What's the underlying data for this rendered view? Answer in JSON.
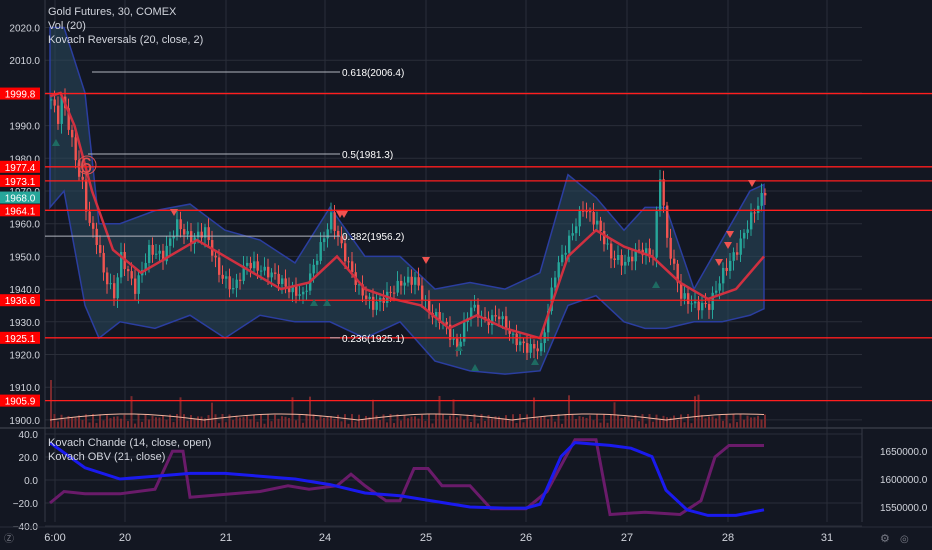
{
  "legend": {
    "symbol": "Gold Futures, 30, COMEX",
    "vol": "Vol (20)",
    "indicator": "Kovach Reversals (20, close, 2)",
    "lower1": "Kovach Chande (14, close, open)",
    "lower2": "Kovach OBV (21, close)"
  },
  "colors": {
    "bg": "#131722",
    "grid": "#2a2e39",
    "hline": "#ff1e1e",
    "fib": "#b2b5be",
    "band_fill": "#2a4a5e",
    "band_edge": "#2b3ea0",
    "ma": "#d03040",
    "up": "#26a69a",
    "down": "#ef5350",
    "vol": "#7a2a2e",
    "vol_ma": "#f4b6a0",
    "chande": "#6a1b6a",
    "obv": "#1a1aee",
    "label_red": "#ff0000",
    "label_teal": "#26a69a"
  },
  "chart_data": [
    {
      "type": "candlestick",
      "title": "Gold Futures, 30, COMEX",
      "ylim": [
        1900,
        2023
      ],
      "y_ticks": [
        1900.0,
        1910.0,
        1920.0,
        1930.0,
        1940.0,
        1950.0,
        1960.0,
        1970.0,
        1980.0,
        1990.0,
        2000.0,
        2010.0,
        2020.0
      ],
      "x_ticks": [
        "6:00",
        "20",
        "21",
        "24",
        "25",
        "26",
        "27",
        "28",
        "31"
      ],
      "close_path": [
        [
          0,
          1998
        ],
        [
          2,
          1992
        ],
        [
          3,
          1998
        ],
        [
          4,
          1995
        ],
        [
          5,
          1990
        ],
        [
          6,
          1985
        ],
        [
          7,
          1980
        ],
        [
          8,
          1975
        ],
        [
          9,
          1972
        ],
        [
          10,
          1965
        ],
        [
          11,
          1960
        ],
        [
          13,
          1955
        ],
        [
          15,
          1945
        ],
        [
          18,
          1938
        ],
        [
          20,
          1950
        ],
        [
          24,
          1940
        ],
        [
          28,
          1952
        ],
        [
          32,
          1950
        ],
        [
          36,
          1960
        ],
        [
          40,
          1955
        ],
        [
          44,
          1958
        ],
        [
          48,
          1945
        ],
        [
          52,
          1940
        ],
        [
          56,
          1948
        ],
        [
          60,
          1946
        ],
        [
          64,
          1944
        ],
        [
          68,
          1940
        ],
        [
          72,
          1938
        ],
        [
          76,
          1950
        ],
        [
          80,
          1962
        ],
        [
          84,
          1950
        ],
        [
          88,
          1940
        ],
        [
          92,
          1935
        ],
        [
          96,
          1938
        ],
        [
          100,
          1942
        ],
        [
          104,
          1943
        ],
        [
          108,
          1933
        ],
        [
          112,
          1930
        ],
        [
          116,
          1922
        ],
        [
          120,
          1935
        ],
        [
          124,
          1930
        ],
        [
          128,
          1932
        ],
        [
          132,
          1925
        ],
        [
          136,
          1922
        ],
        [
          140,
          1922
        ],
        [
          144,
          1945
        ],
        [
          148,
          1955
        ],
        [
          152,
          1965
        ],
        [
          156,
          1960
        ],
        [
          160,
          1950
        ],
        [
          164,
          1948
        ],
        [
          168,
          1952
        ],
        [
          172,
          1950
        ],
        [
          174,
          1975
        ],
        [
          176,
          1955
        ],
        [
          180,
          1938
        ],
        [
          184,
          1935
        ],
        [
          188,
          1935
        ],
        [
          192,
          1945
        ],
        [
          196,
          1952
        ],
        [
          200,
          1962
        ],
        [
          204,
          1970
        ]
      ],
      "overbought_band": {
        "upper": [
          [
            0,
            2020
          ],
          [
            4,
            2020
          ],
          [
            10,
            2000
          ],
          [
            14,
            1960
          ],
          [
            20,
            1960
          ],
          [
            30,
            1964
          ],
          [
            40,
            1966
          ],
          [
            50,
            1958
          ],
          [
            60,
            1955
          ],
          [
            70,
            1948
          ],
          [
            80,
            1965
          ],
          [
            90,
            1950
          ],
          [
            100,
            1950
          ],
          [
            110,
            1940
          ],
          [
            120,
            1942
          ],
          [
            130,
            1940
          ],
          [
            140,
            1945
          ],
          [
            148,
            1975
          ],
          [
            156,
            1968
          ],
          [
            164,
            1958
          ],
          [
            170,
            1965
          ],
          [
            176,
            1965
          ],
          [
            184,
            1940
          ],
          [
            192,
            1955
          ],
          [
            200,
            1970
          ],
          [
            204,
            1972
          ]
        ],
        "lower": [
          [
            0,
            1965
          ],
          [
            4,
            1970
          ],
          [
            10,
            1935
          ],
          [
            14,
            1925
          ],
          [
            20,
            1930
          ],
          [
            30,
            1928
          ],
          [
            40,
            1932
          ],
          [
            50,
            1925
          ],
          [
            60,
            1932
          ],
          [
            70,
            1930
          ],
          [
            80,
            1930
          ],
          [
            90,
            1925
          ],
          [
            100,
            1930
          ],
          [
            110,
            1918
          ],
          [
            120,
            1915
          ],
          [
            130,
            1914
          ],
          [
            140,
            1915
          ],
          [
            148,
            1935
          ],
          [
            156,
            1938
          ],
          [
            164,
            1930
          ],
          [
            170,
            1928
          ],
          [
            176,
            1928
          ],
          [
            184,
            1930
          ],
          [
            192,
            1930
          ],
          [
            200,
            1932
          ],
          [
            204,
            1934
          ]
        ]
      },
      "moving_average": [
        [
          0,
          1999
        ],
        [
          3,
          2000
        ],
        [
          7,
          1990
        ],
        [
          12,
          1970
        ],
        [
          18,
          1952
        ],
        [
          26,
          1945
        ],
        [
          34,
          1950
        ],
        [
          42,
          1955
        ],
        [
          50,
          1950
        ],
        [
          58,
          1945
        ],
        [
          66,
          1940
        ],
        [
          74,
          1942
        ],
        [
          82,
          1950
        ],
        [
          90,
          1940
        ],
        [
          98,
          1937
        ],
        [
          106,
          1935
        ],
        [
          114,
          1928
        ],
        [
          122,
          1932
        ],
        [
          130,
          1928
        ],
        [
          140,
          1925
        ],
        [
          148,
          1950
        ],
        [
          156,
          1958
        ],
        [
          164,
          1953
        ],
        [
          172,
          1950
        ],
        [
          180,
          1942
        ],
        [
          188,
          1937
        ],
        [
          196,
          1940
        ],
        [
          204,
          1950
        ]
      ],
      "horizontal_levels": [
        1999.8,
        1977.4,
        1973.1,
        1964.1,
        1936.6,
        1925.1,
        1905.9
      ],
      "price_labels": [
        {
          "text": "1999.8",
          "value": 1999.8,
          "color": "red"
        },
        {
          "text": "1977.4",
          "value": 1977.4,
          "color": "red"
        },
        {
          "text": "1973.1",
          "value": 1973.1,
          "color": "red"
        },
        {
          "text": "1968.0",
          "value": 1968.0,
          "color": "teal"
        },
        {
          "text": "1964.1",
          "value": 1964.1,
          "color": "red"
        },
        {
          "text": "1936.6",
          "value": 1936.6,
          "color": "red"
        },
        {
          "text": "1925.1",
          "value": 1925.1,
          "color": "red"
        },
        {
          "text": "1905.9",
          "value": 1905.9,
          "color": "red"
        }
      ],
      "fib_levels": [
        {
          "label": "0.618(2006.4)",
          "value": 2006.4
        },
        {
          "label": "0.5(1981.3)",
          "value": 1981.3
        },
        {
          "label": "0.382(1956.2)",
          "value": 1956.2
        },
        {
          "label": "0.236(1925.1)",
          "value": 1925.1
        }
      ],
      "annotation": "6"
    },
    {
      "type": "line",
      "title": "Kovach Chande (14, close, open)",
      "ylim": [
        -40,
        42
      ],
      "y_ticks": [
        40.0,
        20.0,
        0.0,
        -20.0,
        -40.0
      ],
      "series": [
        {
          "values": [
            [
              0,
              -20
            ],
            [
              4,
              -10
            ],
            [
              10,
              -12
            ],
            [
              20,
              -12
            ],
            [
              30,
              -8
            ],
            [
              35,
              25
            ],
            [
              38,
              25
            ],
            [
              40,
              -15
            ],
            [
              60,
              -10
            ],
            [
              68,
              -5
            ],
            [
              74,
              -8
            ],
            [
              82,
              -5
            ],
            [
              86,
              5
            ],
            [
              90,
              -5
            ],
            [
              96,
              -18
            ],
            [
              100,
              -18
            ],
            [
              104,
              10
            ],
            [
              108,
              10
            ],
            [
              112,
              -5
            ],
            [
              120,
              -5
            ],
            [
              126,
              -25
            ],
            [
              136,
              -25
            ],
            [
              142,
              -10
            ],
            [
              150,
              35
            ],
            [
              156,
              35
            ],
            [
              160,
              -30
            ],
            [
              170,
              -28
            ],
            [
              180,
              -30
            ],
            [
              186,
              -18
            ],
            [
              190,
              20
            ],
            [
              194,
              30
            ],
            [
              200,
              30
            ],
            [
              204,
              30
            ]
          ]
        }
      ]
    },
    {
      "type": "line",
      "title": "Kovach OBV (21, close)",
      "y_ticks": [
        1650000.0,
        1600000.0,
        1550000.0
      ],
      "ylim": [
        1505000,
        1680000
      ],
      "series": [
        {
          "values": [
            [
              0,
              1665000
            ],
            [
              10,
              1620000
            ],
            [
              20,
              1600000
            ],
            [
              30,
              1605000
            ],
            [
              40,
              1610000
            ],
            [
              50,
              1610000
            ],
            [
              60,
              1605000
            ],
            [
              70,
              1600000
            ],
            [
              80,
              1590000
            ],
            [
              90,
              1575000
            ],
            [
              100,
              1570000
            ],
            [
              110,
              1560000
            ],
            [
              120,
              1550000
            ],
            [
              130,
              1548000
            ],
            [
              136,
              1548000
            ],
            [
              140,
              1555000
            ],
            [
              146,
              1640000
            ],
            [
              150,
              1665000
            ],
            [
              160,
              1660000
            ],
            [
              166,
              1655000
            ],
            [
              172,
              1640000
            ],
            [
              176,
              1580000
            ],
            [
              182,
              1545000
            ],
            [
              188,
              1535000
            ],
            [
              196,
              1535000
            ],
            [
              204,
              1545000
            ]
          ]
        }
      ]
    }
  ]
}
